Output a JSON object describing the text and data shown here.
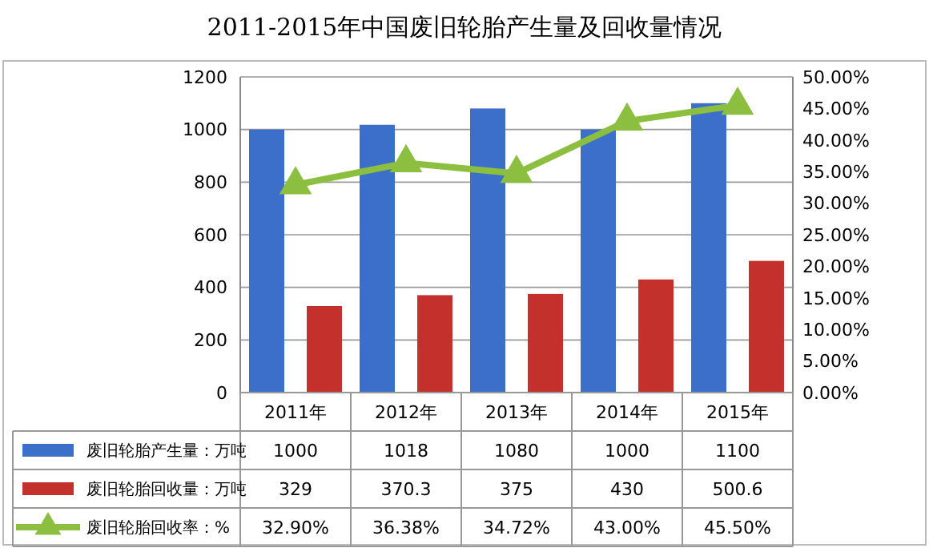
{
  "chart_data": {
    "type": "bar",
    "title": "2011-2015年中国废旧轮胎产生量及回收量情况",
    "categories": [
      "2011年",
      "2012年",
      "2013年",
      "2014年",
      "2015年"
    ],
    "series": [
      {
        "name": "废旧轮胎产生量：万吨",
        "color": "#3b6fc9",
        "values": [
          1000,
          1018,
          1080,
          1000,
          1100
        ],
        "value_labels": [
          "1000",
          "1018",
          "1080",
          "1000",
          "1100"
        ]
      },
      {
        "name": "废旧轮胎回收量：万吨",
        "color": "#c4302b",
        "values": [
          329,
          370.3,
          375,
          430,
          500.6
        ],
        "value_labels": [
          "329",
          "370.3",
          "375",
          "430",
          "500.6"
        ]
      },
      {
        "name": "废旧轮胎回收率：%",
        "type": "line",
        "axis": "y2",
        "marker": "triangle",
        "color": "#8cbf3f",
        "values": [
          32.9,
          36.38,
          34.72,
          43.0,
          45.5
        ],
        "value_labels": [
          "32.90%",
          "36.38%",
          "34.72%",
          "43.00%",
          "45.50%"
        ]
      }
    ],
    "ylim": [
      0,
      1200
    ],
    "yticks": [
      0,
      200,
      400,
      600,
      800,
      1000,
      1200
    ],
    "y2lim": [
      0,
      50
    ],
    "y2ticks": [
      {
        "value": 0,
        "label": "0.00%"
      },
      {
        "value": 5,
        "label": "5.00%"
      },
      {
        "value": 10,
        "label": "10.00%"
      },
      {
        "value": 15,
        "label": "15.00%"
      },
      {
        "value": 20,
        "label": "20.00%"
      },
      {
        "value": 25,
        "label": "25.00%"
      },
      {
        "value": 30,
        "label": "30.00%"
      },
      {
        "value": 35,
        "label": "35.00%"
      },
      {
        "value": 40,
        "label": "40.00%"
      },
      {
        "value": 45,
        "label": "45.00%"
      },
      {
        "value": 50,
        "label": "50.00%"
      }
    ],
    "grid": "y",
    "legend": "bottom"
  }
}
